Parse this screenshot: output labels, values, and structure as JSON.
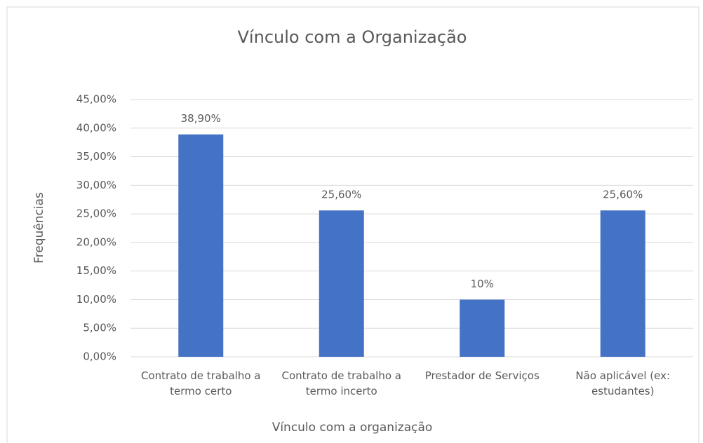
{
  "chart_data": {
    "type": "bar",
    "title": "Vínculo com a Organização",
    "x_label": "Vínculo com a organização",
    "y_label": "Frequências",
    "categories": [
      "Contrato de trabalho a termo certo",
      "Contrato de trabalho a termo incerto",
      "Prestador de Serviços",
      "Não aplicável (ex: estudantes)"
    ],
    "values": [
      38.9,
      25.6,
      10,
      25.6
    ],
    "value_labels": [
      "38,90%",
      "25,60%",
      "10%",
      "25,60%"
    ],
    "color": "#4472c4",
    "ylim": [
      0,
      45
    ],
    "yticks": [
      {
        "value": 0,
        "label": "0,00%"
      },
      {
        "value": 5,
        "label": "5,00%"
      },
      {
        "value": 10,
        "label": "10,00%"
      },
      {
        "value": 15,
        "label": "15,00%"
      },
      {
        "value": 20,
        "label": "20,00%"
      },
      {
        "value": 25,
        "label": "25,00%"
      },
      {
        "value": 30,
        "label": "30,00%"
      },
      {
        "value": 35,
        "label": "35,00%"
      },
      {
        "value": 40,
        "label": "40,00%"
      },
      {
        "value": 45,
        "label": "45,00%"
      }
    ],
    "grid": true
  }
}
